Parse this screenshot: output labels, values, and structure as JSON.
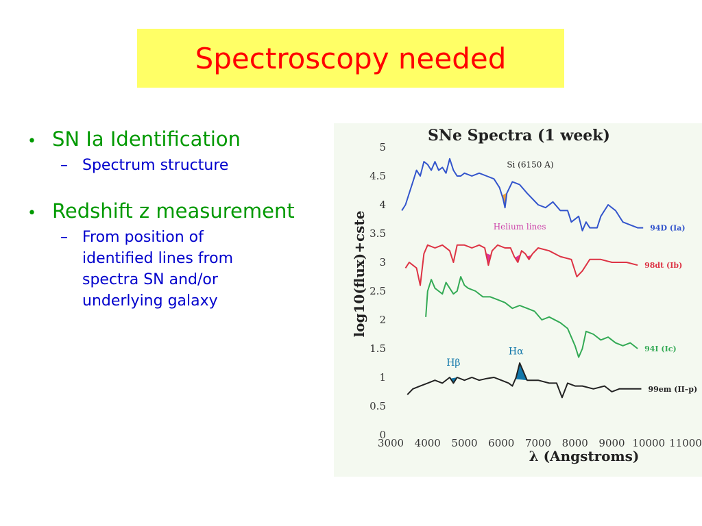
{
  "slide": {
    "title": "Spectroscopy needed",
    "bullets": [
      {
        "text": "SN Ia  Identification",
        "sub": "Spectrum structure"
      },
      {
        "text": "Redshift z measurement",
        "sub": "From position of identified lines from spectra SN and/or underlying galaxy"
      }
    ]
  },
  "colors": {
    "title": "#ff0000",
    "title_bg": "#ffff66",
    "bullet": "#009900",
    "sub_bullet": "#0000cc",
    "chart_bg": "#f4f9f0"
  },
  "chart_data": {
    "type": "line",
    "title": "SNe Spectra (1 week)",
    "xlabel": "λ (Angstroms)",
    "ylabel": "log10(flux)+cste",
    "xlim": [
      3000,
      11000
    ],
    "ylim": [
      0,
      5
    ],
    "x_ticks": [
      "3000",
      "4000",
      "5000",
      "6000",
      "7000",
      "8000",
      "9000",
      "10000",
      "11000"
    ],
    "y_ticks": [
      "0",
      "0.5",
      "1",
      "1.5",
      "2",
      "2.5",
      "3",
      "3.5",
      "4",
      "4.5",
      "5"
    ],
    "series": [
      {
        "name": "94D (Ia)",
        "color": "#3355cc",
        "points": [
          [
            3300,
            3.9
          ],
          [
            3400,
            4.0
          ],
          [
            3500,
            4.2
          ],
          [
            3600,
            4.4
          ],
          [
            3700,
            4.6
          ],
          [
            3800,
            4.5
          ],
          [
            3900,
            4.75
          ],
          [
            4000,
            4.7
          ],
          [
            4100,
            4.6
          ],
          [
            4200,
            4.75
          ],
          [
            4300,
            4.6
          ],
          [
            4400,
            4.65
          ],
          [
            4500,
            4.55
          ],
          [
            4600,
            4.8
          ],
          [
            4700,
            4.6
          ],
          [
            4800,
            4.5
          ],
          [
            4900,
            4.5
          ],
          [
            5000,
            4.55
          ],
          [
            5200,
            4.5
          ],
          [
            5400,
            4.55
          ],
          [
            5600,
            4.5
          ],
          [
            5800,
            4.45
          ],
          [
            5950,
            4.3
          ],
          [
            6050,
            4.1
          ],
          [
            6100,
            3.95
          ],
          [
            6150,
            4.2
          ],
          [
            6300,
            4.4
          ],
          [
            6500,
            4.35
          ],
          [
            6700,
            4.2
          ],
          [
            7000,
            4.0
          ],
          [
            7200,
            3.95
          ],
          [
            7400,
            4.05
          ],
          [
            7600,
            3.9
          ],
          [
            7800,
            3.9
          ],
          [
            7900,
            3.7
          ],
          [
            8100,
            3.8
          ],
          [
            8200,
            3.55
          ],
          [
            8300,
            3.7
          ],
          [
            8400,
            3.6
          ],
          [
            8600,
            3.6
          ],
          [
            8700,
            3.8
          ],
          [
            8900,
            4.0
          ],
          [
            9100,
            3.9
          ],
          [
            9300,
            3.7
          ],
          [
            9500,
            3.65
          ],
          [
            9700,
            3.6
          ],
          [
            9850,
            3.6
          ]
        ]
      },
      {
        "name": "98dt (Ib)",
        "color": "#dd3344",
        "points": [
          [
            3400,
            2.9
          ],
          [
            3500,
            3.0
          ],
          [
            3600,
            2.95
          ],
          [
            3700,
            2.9
          ],
          [
            3800,
            2.6
          ],
          [
            3900,
            3.15
          ],
          [
            4000,
            3.3
          ],
          [
            4200,
            3.25
          ],
          [
            4400,
            3.3
          ],
          [
            4600,
            3.2
          ],
          [
            4700,
            3.0
          ],
          [
            4800,
            3.3
          ],
          [
            5000,
            3.3
          ],
          [
            5200,
            3.25
          ],
          [
            5400,
            3.3
          ],
          [
            5550,
            3.25
          ],
          [
            5650,
            2.95
          ],
          [
            5750,
            3.2
          ],
          [
            5900,
            3.3
          ],
          [
            6100,
            3.25
          ],
          [
            6250,
            3.25
          ],
          [
            6350,
            3.1
          ],
          [
            6450,
            3.0
          ],
          [
            6550,
            3.2
          ],
          [
            6650,
            3.15
          ],
          [
            6750,
            3.05
          ],
          [
            6850,
            3.15
          ],
          [
            7000,
            3.25
          ],
          [
            7300,
            3.2
          ],
          [
            7600,
            3.1
          ],
          [
            7900,
            3.05
          ],
          [
            8050,
            2.75
          ],
          [
            8200,
            2.85
          ],
          [
            8400,
            3.05
          ],
          [
            8700,
            3.05
          ],
          [
            9000,
            3.0
          ],
          [
            9400,
            3.0
          ],
          [
            9700,
            2.95
          ]
        ]
      },
      {
        "name": "94I (Ic)",
        "color": "#33aa55",
        "points": [
          [
            3950,
            2.05
          ],
          [
            4000,
            2.5
          ],
          [
            4100,
            2.7
          ],
          [
            4200,
            2.55
          ],
          [
            4300,
            2.5
          ],
          [
            4400,
            2.45
          ],
          [
            4500,
            2.65
          ],
          [
            4600,
            2.55
          ],
          [
            4700,
            2.45
          ],
          [
            4800,
            2.5
          ],
          [
            4900,
            2.75
          ],
          [
            5000,
            2.6
          ],
          [
            5100,
            2.55
          ],
          [
            5300,
            2.5
          ],
          [
            5500,
            2.4
          ],
          [
            5700,
            2.4
          ],
          [
            5900,
            2.35
          ],
          [
            6100,
            2.3
          ],
          [
            6300,
            2.2
          ],
          [
            6500,
            2.25
          ],
          [
            6700,
            2.2
          ],
          [
            6900,
            2.15
          ],
          [
            7100,
            2.0
          ],
          [
            7300,
            2.05
          ],
          [
            7600,
            1.95
          ],
          [
            7800,
            1.85
          ],
          [
            8000,
            1.55
          ],
          [
            8100,
            1.35
          ],
          [
            8200,
            1.5
          ],
          [
            8300,
            1.8
          ],
          [
            8500,
            1.75
          ],
          [
            8700,
            1.65
          ],
          [
            8900,
            1.7
          ],
          [
            9100,
            1.6
          ],
          [
            9300,
            1.55
          ],
          [
            9500,
            1.6
          ],
          [
            9700,
            1.5
          ]
        ]
      },
      {
        "name": "99em (II–p)",
        "color": "#222222",
        "points": [
          [
            3450,
            0.7
          ],
          [
            3600,
            0.8
          ],
          [
            3800,
            0.85
          ],
          [
            4000,
            0.9
          ],
          [
            4200,
            0.95
          ],
          [
            4400,
            0.9
          ],
          [
            4600,
            1.0
          ],
          [
            4700,
            0.9
          ],
          [
            4800,
            1.0
          ],
          [
            5000,
            0.95
          ],
          [
            5200,
            1.0
          ],
          [
            5400,
            0.95
          ],
          [
            5600,
            0.98
          ],
          [
            5800,
            1.0
          ],
          [
            6000,
            0.95
          ],
          [
            6200,
            0.9
          ],
          [
            6300,
            0.85
          ],
          [
            6400,
            1.0
          ],
          [
            6500,
            1.25
          ],
          [
            6600,
            1.1
          ],
          [
            6700,
            0.95
          ],
          [
            6800,
            0.95
          ],
          [
            7000,
            0.95
          ],
          [
            7300,
            0.9
          ],
          [
            7500,
            0.9
          ],
          [
            7650,
            0.65
          ],
          [
            7800,
            0.9
          ],
          [
            8000,
            0.85
          ],
          [
            8200,
            0.85
          ],
          [
            8500,
            0.8
          ],
          [
            8800,
            0.85
          ],
          [
            9000,
            0.75
          ],
          [
            9200,
            0.8
          ],
          [
            9500,
            0.8
          ],
          [
            9800,
            0.8
          ]
        ]
      }
    ],
    "annotations": [
      {
        "text": "Si (6150 A)",
        "color": "#222222"
      },
      {
        "text": "Helium lines",
        "color": "#cc44aa"
      },
      {
        "text": "Hβ",
        "color": "#1177aa"
      },
      {
        "text": "Hα",
        "color": "#1177aa"
      }
    ],
    "shaded_features": [
      {
        "series": "94D (Ia)",
        "x": [
          6020,
          6160
        ],
        "color": "#e8a040"
      },
      {
        "series": "98dt (Ib)",
        "x": [
          5580,
          5720
        ],
        "color": "#dd3399"
      },
      {
        "series": "98dt (Ib)",
        "x": [
          6370,
          6520
        ],
        "color": "#dd3399"
      },
      {
        "series": "98dt (Ib)",
        "x": [
          6700,
          6830
        ],
        "color": "#dd3399"
      },
      {
        "series": "99em (II–p)",
        "x": [
          4620,
          4800
        ],
        "color": "#1177aa"
      },
      {
        "series": "99em (II–p)",
        "x": [
          6380,
          6720
        ],
        "color": "#1177aa"
      }
    ]
  }
}
